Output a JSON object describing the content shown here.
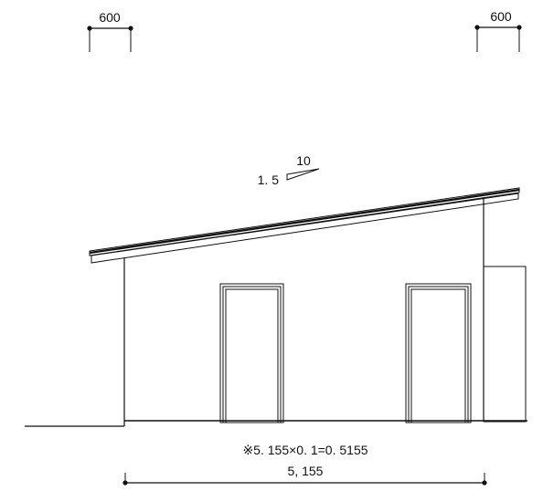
{
  "drawing": {
    "dims": {
      "top_left": "600",
      "top_right": "600",
      "bottom_formula": "※5. 155×0. 1=0. 5155",
      "bottom_total": "5, 155"
    },
    "roof_pitch": {
      "rise": "10",
      "run": "1. 5"
    }
  }
}
